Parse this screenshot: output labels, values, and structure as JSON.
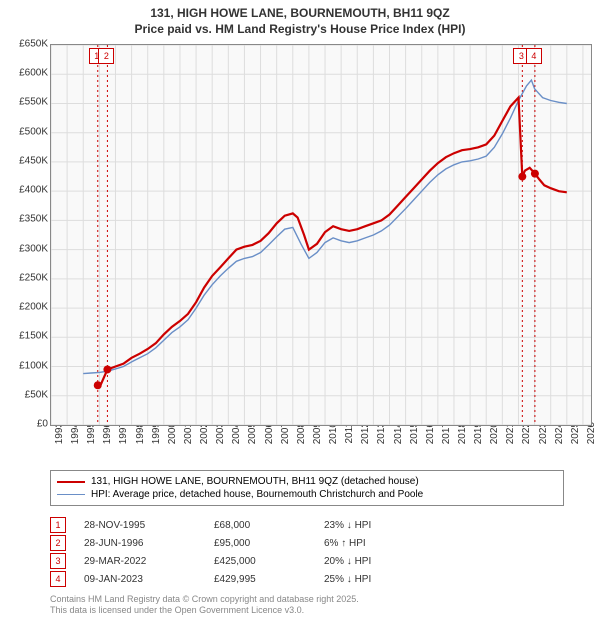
{
  "title_line1": "131, HIGH HOWE LANE, BOURNEMOUTH, BH11 9QZ",
  "title_line2": "Price paid vs. HM Land Registry's House Price Index (HPI)",
  "chart": {
    "type": "line",
    "background_color": "#f9f9f9",
    "grid_color": "#dddddd",
    "border_color": "#888888",
    "x_min": 1993,
    "x_max": 2026.5,
    "y_min": 0,
    "y_max": 650000,
    "y_ticks": [
      "£0",
      "£50K",
      "£100K",
      "£150K",
      "£200K",
      "£250K",
      "£300K",
      "£350K",
      "£400K",
      "£450K",
      "£500K",
      "£550K",
      "£600K",
      "£650K"
    ],
    "x_ticks": [
      "1993",
      "1994",
      "1995",
      "1996",
      "1997",
      "1998",
      "1999",
      "2000",
      "2001",
      "2002",
      "2003",
      "2004",
      "2005",
      "2006",
      "2007",
      "2008",
      "2009",
      "2010",
      "2011",
      "2012",
      "2013",
      "2014",
      "2015",
      "2016",
      "2017",
      "2018",
      "2019",
      "2020",
      "2021",
      "2022",
      "2023",
      "2024",
      "2025",
      "2026"
    ],
    "series_price": {
      "label": "131, HIGH HOWE LANE, BOURNEMOUTH, BH11 9QZ (detached house)",
      "color": "#cc0000",
      "line_width": 2.2,
      "data": [
        [
          1995.9,
          68000
        ],
        [
          1996.1,
          70000
        ],
        [
          1996.5,
          95000
        ],
        [
          1997.0,
          100000
        ],
        [
          1997.5,
          105000
        ],
        [
          1998.0,
          115000
        ],
        [
          1998.5,
          122000
        ],
        [
          1999.0,
          130000
        ],
        [
          1999.5,
          140000
        ],
        [
          2000.0,
          155000
        ],
        [
          2000.5,
          168000
        ],
        [
          2001.0,
          178000
        ],
        [
          2001.5,
          190000
        ],
        [
          2002.0,
          210000
        ],
        [
          2002.5,
          235000
        ],
        [
          2003.0,
          255000
        ],
        [
          2003.5,
          270000
        ],
        [
          2004.0,
          285000
        ],
        [
          2004.5,
          300000
        ],
        [
          2005.0,
          305000
        ],
        [
          2005.5,
          308000
        ],
        [
          2006.0,
          315000
        ],
        [
          2006.5,
          328000
        ],
        [
          2007.0,
          345000
        ],
        [
          2007.5,
          358000
        ],
        [
          2008.0,
          362000
        ],
        [
          2008.3,
          355000
        ],
        [
          2008.7,
          325000
        ],
        [
          2009.0,
          300000
        ],
        [
          2009.5,
          310000
        ],
        [
          2010.0,
          330000
        ],
        [
          2010.5,
          340000
        ],
        [
          2011.0,
          335000
        ],
        [
          2011.5,
          332000
        ],
        [
          2012.0,
          335000
        ],
        [
          2012.5,
          340000
        ],
        [
          2013.0,
          345000
        ],
        [
          2013.5,
          350000
        ],
        [
          2014.0,
          360000
        ],
        [
          2014.5,
          375000
        ],
        [
          2015.0,
          390000
        ],
        [
          2015.5,
          405000
        ],
        [
          2016.0,
          420000
        ],
        [
          2016.5,
          435000
        ],
        [
          2017.0,
          448000
        ],
        [
          2017.5,
          458000
        ],
        [
          2018.0,
          465000
        ],
        [
          2018.5,
          470000
        ],
        [
          2019.0,
          472000
        ],
        [
          2019.5,
          475000
        ],
        [
          2020.0,
          480000
        ],
        [
          2020.5,
          495000
        ],
        [
          2021.0,
          520000
        ],
        [
          2021.5,
          545000
        ],
        [
          2022.0,
          560000
        ],
        [
          2022.24,
          425000
        ],
        [
          2022.4,
          435000
        ],
        [
          2022.7,
          440000
        ],
        [
          2023.02,
          429995
        ],
        [
          2023.3,
          420000
        ],
        [
          2023.6,
          410000
        ],
        [
          2024.0,
          405000
        ],
        [
          2024.5,
          400000
        ],
        [
          2025.0,
          398000
        ]
      ]
    },
    "series_hpi": {
      "label": "HPI: Average price, detached house, Bournemouth Christchurch and Poole",
      "color": "#6a8fc7",
      "line_width": 1.4,
      "data": [
        [
          1995.0,
          88000
        ],
        [
          1995.5,
          89000
        ],
        [
          1996.0,
          90000
        ],
        [
          1996.5,
          92000
        ],
        [
          1997.0,
          96000
        ],
        [
          1997.5,
          100000
        ],
        [
          1998.0,
          108000
        ],
        [
          1998.5,
          115000
        ],
        [
          1999.0,
          122000
        ],
        [
          1999.5,
          132000
        ],
        [
          2000.0,
          145000
        ],
        [
          2000.5,
          158000
        ],
        [
          2001.0,
          168000
        ],
        [
          2001.5,
          180000
        ],
        [
          2002.0,
          200000
        ],
        [
          2002.5,
          222000
        ],
        [
          2003.0,
          240000
        ],
        [
          2003.5,
          255000
        ],
        [
          2004.0,
          268000
        ],
        [
          2004.5,
          280000
        ],
        [
          2005.0,
          285000
        ],
        [
          2005.5,
          288000
        ],
        [
          2006.0,
          295000
        ],
        [
          2006.5,
          308000
        ],
        [
          2007.0,
          322000
        ],
        [
          2007.5,
          335000
        ],
        [
          2008.0,
          338000
        ],
        [
          2008.5,
          310000
        ],
        [
          2009.0,
          285000
        ],
        [
          2009.5,
          295000
        ],
        [
          2010.0,
          312000
        ],
        [
          2010.5,
          320000
        ],
        [
          2011.0,
          315000
        ],
        [
          2011.5,
          312000
        ],
        [
          2012.0,
          315000
        ],
        [
          2012.5,
          320000
        ],
        [
          2013.0,
          325000
        ],
        [
          2013.5,
          332000
        ],
        [
          2014.0,
          342000
        ],
        [
          2014.5,
          356000
        ],
        [
          2015.0,
          370000
        ],
        [
          2015.5,
          385000
        ],
        [
          2016.0,
          400000
        ],
        [
          2016.5,
          415000
        ],
        [
          2017.0,
          428000
        ],
        [
          2017.5,
          438000
        ],
        [
          2018.0,
          445000
        ],
        [
          2018.5,
          450000
        ],
        [
          2019.0,
          452000
        ],
        [
          2019.5,
          455000
        ],
        [
          2020.0,
          460000
        ],
        [
          2020.5,
          475000
        ],
        [
          2021.0,
          498000
        ],
        [
          2021.5,
          525000
        ],
        [
          2022.0,
          555000
        ],
        [
          2022.5,
          580000
        ],
        [
          2022.8,
          590000
        ],
        [
          2023.0,
          575000
        ],
        [
          2023.5,
          560000
        ],
        [
          2024.0,
          555000
        ],
        [
          2024.5,
          552000
        ],
        [
          2025.0,
          550000
        ]
      ]
    },
    "markers": [
      {
        "n": "1",
        "x": 1995.9,
        "y": 68000,
        "color": "#cc0000"
      },
      {
        "n": "2",
        "x": 1996.5,
        "y": 95000,
        "color": "#cc0000"
      },
      {
        "n": "3",
        "x": 2022.24,
        "y": 425000,
        "color": "#cc0000"
      },
      {
        "n": "4",
        "x": 2023.02,
        "y": 429995,
        "color": "#cc0000"
      }
    ],
    "marker_line_color": "#cc0000"
  },
  "legend": {
    "s1_label": "131, HIGH HOWE LANE, BOURNEMOUTH, BH11 9QZ (detached house)",
    "s1_color": "#cc0000",
    "s2_label": "HPI: Average price, detached house, Bournemouth Christchurch and Poole",
    "s2_color": "#6a8fc7"
  },
  "transactions": [
    {
      "n": "1",
      "date": "28-NOV-1995",
      "price": "£68,000",
      "diff": "23%",
      "dir": "↓",
      "suffix": "HPI",
      "color": "#cc0000"
    },
    {
      "n": "2",
      "date": "28-JUN-1996",
      "price": "£95,000",
      "diff": "6%",
      "dir": "↑",
      "suffix": "HPI",
      "color": "#cc0000"
    },
    {
      "n": "3",
      "date": "29-MAR-2022",
      "price": "£425,000",
      "diff": "20%",
      "dir": "↓",
      "suffix": "HPI",
      "color": "#cc0000"
    },
    {
      "n": "4",
      "date": "09-JAN-2023",
      "price": "£429,995",
      "diff": "25%",
      "dir": "↓",
      "suffix": "HPI",
      "color": "#cc0000"
    }
  ],
  "attribution_line1": "Contains HM Land Registry data © Crown copyright and database right 2025.",
  "attribution_line2": "This data is licensed under the Open Government Licence v3.0."
}
